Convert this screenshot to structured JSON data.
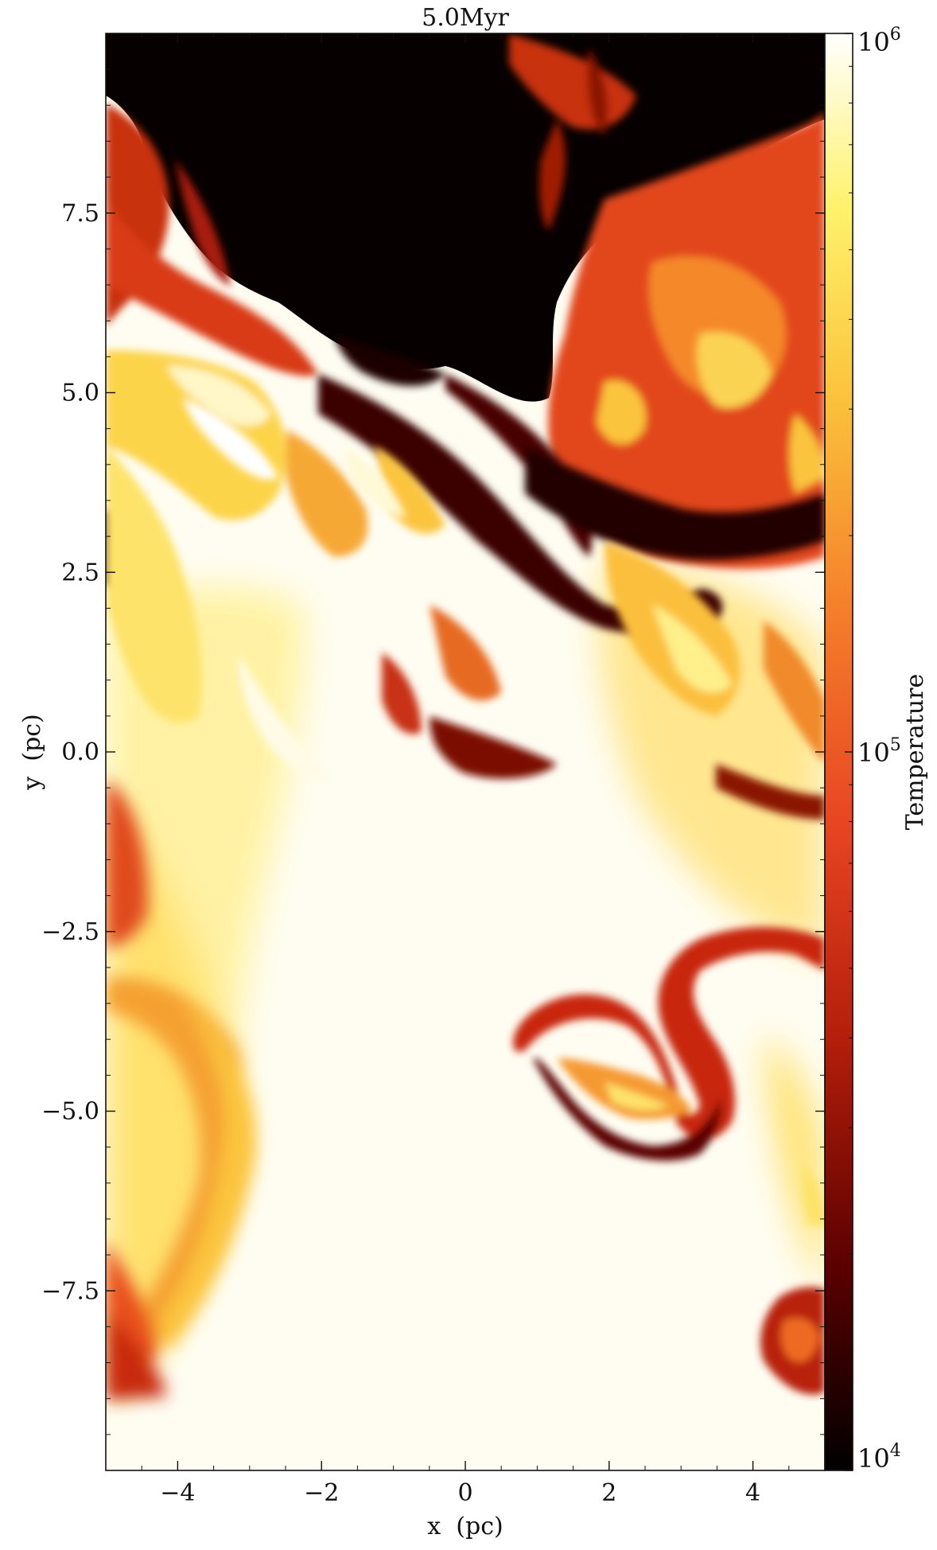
{
  "chart_data": {
    "type": "heatmap",
    "title": "5.0Myr",
    "xlabel": "x  (pc)",
    "ylabel": "y  (pc)",
    "xlim": [
      -5.0,
      5.0
    ],
    "ylim": [
      -10.0,
      10.0
    ],
    "x_ticks": [
      {
        "value": -4,
        "label": "−4"
      },
      {
        "value": -2,
        "label": "−2"
      },
      {
        "value": 0,
        "label": "0"
      },
      {
        "value": 2,
        "label": "2"
      },
      {
        "value": 4,
        "label": "4"
      }
    ],
    "y_ticks": [
      {
        "value": 7.5,
        "label": "7.5"
      },
      {
        "value": 5.0,
        "label": "5.0"
      },
      {
        "value": 2.5,
        "label": "2.5"
      },
      {
        "value": 0.0,
        "label": "0.0"
      },
      {
        "value": -2.5,
        "label": "−2.5"
      },
      {
        "value": -5.0,
        "label": "−5.0"
      },
      {
        "value": -7.5,
        "label": "−7.5"
      }
    ],
    "colorbar": {
      "label": "Temperature",
      "scale": "log",
      "range": [
        10000,
        1000000
      ],
      "ticks": [
        {
          "value": 10000,
          "base": "10",
          "exp": "4"
        },
        {
          "value": 100000,
          "base": "10",
          "exp": "5"
        },
        {
          "value": 1000000,
          "base": "10",
          "exp": "6"
        }
      ],
      "colormap": [
        "#000000",
        "#5a0000",
        "#b41e0a",
        "#e84522",
        "#f57f2a",
        "#fbc43c",
        "#fff26c",
        "#ffffff"
      ]
    },
    "grid": false
  }
}
